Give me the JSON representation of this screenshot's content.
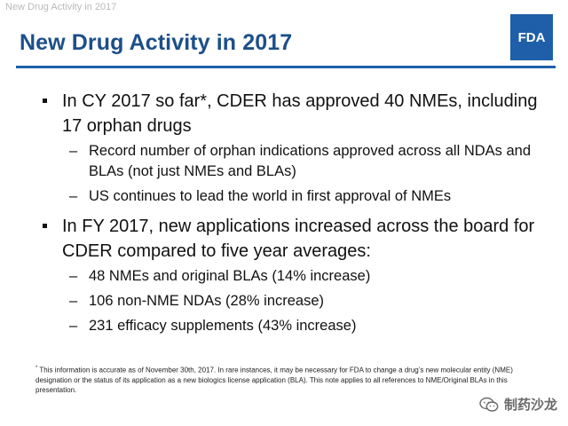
{
  "header_caption": "New Drug Activity in 2017",
  "title": "New Drug Activity in 2017",
  "logo_text": "FDA",
  "bullets": [
    {
      "text": "In CY 2017 so far*, CDER has approved 40 NMEs, including 17 orphan drugs",
      "subs": [
        "Record number of orphan indications approved across all NDAs and BLAs (not just NMEs and BLAs)",
        "US continues to lead the world in first approval of NMEs"
      ]
    },
    {
      "text": "In FY 2017, new applications increased across the board for CDER compared to five year averages:",
      "subs": [
        "48 NMEs and original BLAs (14% increase)",
        "106 non-NME NDAs (28% increase)",
        "231 efficacy supplements (43% increase)"
      ]
    }
  ],
  "footnote": {
    "marker": "*",
    "text": "This information is accurate as of November 30th, 2017.  In rare instances, it may be necessary for FDA to change a drug’s new molecular entity (NME) designation or the status of its application as a new biologics license application (BLA).  This note applies to all references to NME/Original BLAs  in this presentation."
  },
  "watermark": {
    "icon": "wechat-icon",
    "text": "制药沙龙"
  }
}
